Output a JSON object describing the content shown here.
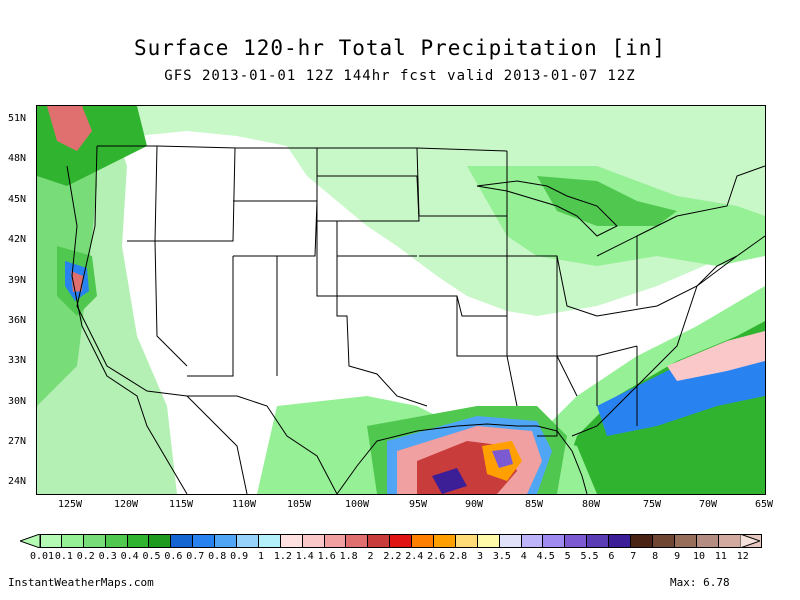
{
  "title": "Surface 120-hr Total Precipitation [in]",
  "subtitle": "GFS 2013-01-01 12Z 144hr fcst valid 2013-01-07 12Z",
  "lat_labels": [
    "51N",
    "48N",
    "45N",
    "42N",
    "39N",
    "36N",
    "33N",
    "30N",
    "27N",
    "24N"
  ],
  "lon_labels": [
    "125W",
    "120W",
    "115W",
    "110W",
    "105W",
    "100W",
    "95W",
    "90W",
    "85W",
    "80W",
    "75W",
    "70W",
    "65W"
  ],
  "legend": {
    "labels": [
      "0.01",
      "0.1",
      "0.2",
      "0.3",
      "0.4",
      "0.5",
      "0.6",
      "0.7",
      "0.8",
      "0.9",
      "1",
      "1.2",
      "1.4",
      "1.6",
      "1.8",
      "2",
      "2.2",
      "2.4",
      "2.6",
      "2.8",
      "3",
      "3.5",
      "4",
      "4.5",
      "5",
      "5.5",
      "6",
      "7",
      "8",
      "9",
      "10",
      "11",
      "12"
    ],
    "colors": [
      "#b4fab4",
      "#96f096",
      "#78dc78",
      "#50c850",
      "#30b430",
      "#1e9a1e",
      "#1464d2",
      "#2882f0",
      "#50a5f5",
      "#96d2fa",
      "#b4f0fa",
      "#ffe1e1",
      "#fac8c8",
      "#f0a0a0",
      "#e07070",
      "#c83c3c",
      "#e11414",
      "#ff7f00",
      "#ffa000",
      "#ffdc78",
      "#fffaaa",
      "#e1e1fa",
      "#beb4fa",
      "#a08cf0",
      "#7c5ad2",
      "#5a3cb4",
      "#3c1e96",
      "#4b2314",
      "#6e4632",
      "#966e5a",
      "#b48c82",
      "#d2aaa0",
      "#e6c8c0"
    ]
  },
  "footer": {
    "site": "InstantWeatherMaps.com",
    "max_label": "Max:",
    "max_value": "6.78"
  }
}
